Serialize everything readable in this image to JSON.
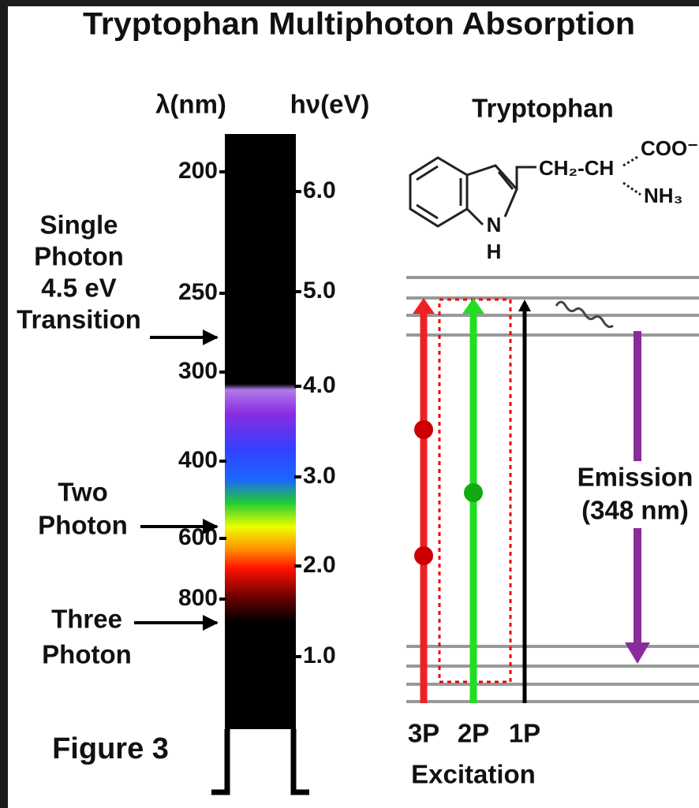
{
  "title": "Tryptophan Multiphoton Absorption",
  "spectrum": {
    "wavelength_header": "λ(nm)",
    "energy_header": "hν(eV)",
    "wavelength_ticks": [
      "200",
      "250",
      "300",
      "400",
      "600",
      "800"
    ],
    "energy_ticks": [
      "6.0",
      "5.0",
      "4.0",
      "3.0",
      "2.0",
      "1.0"
    ]
  },
  "photon_labels": {
    "single": [
      "Single",
      "Photon",
      "4.5 eV",
      "Transition"
    ],
    "two": [
      "Two",
      "Photon"
    ],
    "three": [
      "Three",
      "Photon"
    ]
  },
  "figure_label": "Figure 3",
  "molecule": {
    "name": "Tryptophan",
    "side_chain": "CH₂-CH",
    "carboxyl": "COO⁻",
    "amine": "NH₃",
    "ring_n": "N",
    "ring_h": "H"
  },
  "energy_diagram": {
    "emission": [
      "Emission",
      "(348 nm)"
    ],
    "excitation_labels": [
      "3P",
      "2P",
      "1P"
    ],
    "excitation": "Excitation"
  }
}
